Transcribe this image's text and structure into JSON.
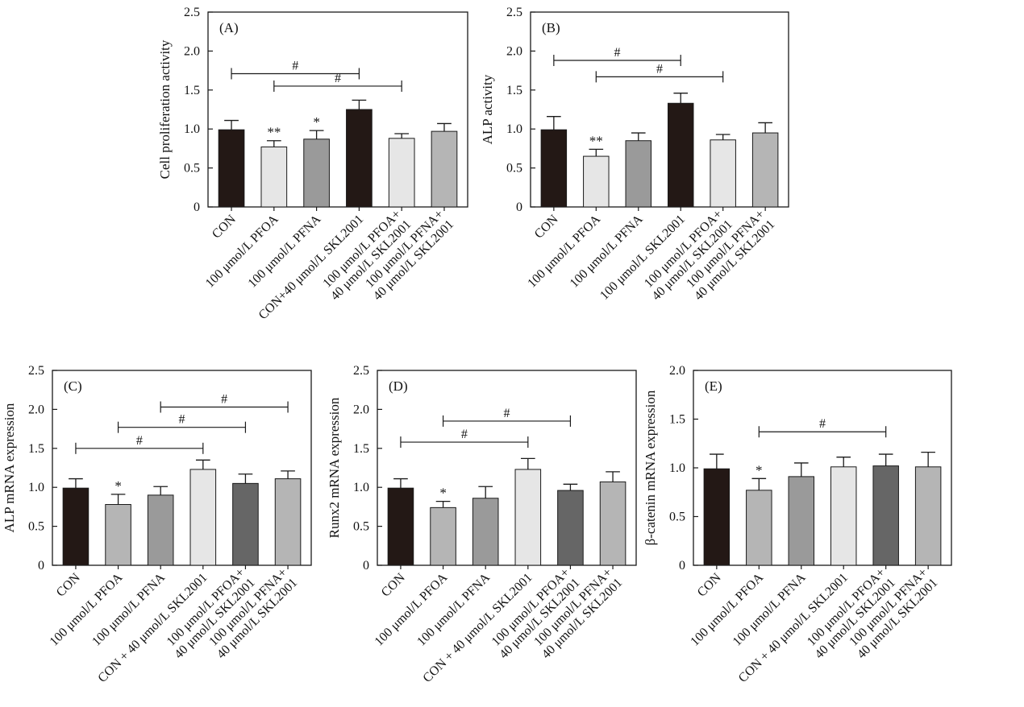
{
  "colors": {
    "black": "#231815",
    "light": "#e6e6e6",
    "mid": "#9a9a9a",
    "dark": "#666666",
    "silver": "#b5b5b5",
    "axis": "#1a1a1a"
  },
  "chart_data": [
    {
      "type": "bar",
      "panel": "(A)",
      "ylabel": "Cell proliferation activity",
      "ylim": [
        0,
        2.5
      ],
      "yticks": [
        "0",
        "0.5",
        "1.0",
        "1.5",
        "2.0",
        "2.5"
      ],
      "categories": [
        [
          "CON"
        ],
        [
          "100 μmol/L PFOA"
        ],
        [
          "100 μmol/L PFNA"
        ],
        [
          "CON+40 μmol/L SKL2001"
        ],
        [
          "100 μmol/L PFOA+",
          "40 μmol/L SKL2001"
        ],
        [
          "100 μmol/L PFNA+",
          "40 μmol/L SKL2001"
        ]
      ],
      "values": [
        0.99,
        0.77,
        0.87,
        1.25,
        0.88,
        0.97
      ],
      "errors": [
        0.12,
        0.08,
        0.11,
        0.12,
        0.06,
        0.1
      ],
      "bar_colors": [
        "black",
        "light",
        "mid",
        "black",
        "light",
        "silver"
      ],
      "significance": [
        "",
        "**",
        "*",
        "",
        "",
        ""
      ],
      "comparisons": [
        {
          "from": 0,
          "to": 3,
          "y": 1.71,
          "label": "#"
        },
        {
          "from": 1,
          "to": 4,
          "y": 1.55,
          "label": "#"
        }
      ]
    },
    {
      "type": "bar",
      "panel": "(B)",
      "ylabel": "ALP activity",
      "ylim": [
        0,
        2.5
      ],
      "yticks": [
        "0",
        "0.5",
        "1.0",
        "1.5",
        "2.0",
        "2.5"
      ],
      "categories": [
        [
          "CON"
        ],
        [
          "100 μmol/L PFOA"
        ],
        [
          "100 μmol/L PFNA"
        ],
        [
          "100 μmol/L SKL2001"
        ],
        [
          "100 μmol/L PFOA+",
          "40 μmol/L SKL2001"
        ],
        [
          "100 μmol/L PFNA+",
          "40 μmol/L SKL2001"
        ]
      ],
      "values": [
        0.99,
        0.65,
        0.85,
        1.33,
        0.86,
        0.95
      ],
      "errors": [
        0.17,
        0.09,
        0.1,
        0.13,
        0.07,
        0.13
      ],
      "bar_colors": [
        "black",
        "light",
        "mid",
        "black",
        "light",
        "silver"
      ],
      "significance": [
        "",
        "**",
        "",
        "",
        "",
        ""
      ],
      "comparisons": [
        {
          "from": 0,
          "to": 3,
          "y": 1.88,
          "label": "#"
        },
        {
          "from": 1,
          "to": 4,
          "y": 1.67,
          "label": "#"
        }
      ]
    },
    {
      "type": "bar",
      "panel": "(C)",
      "ylabel": "ALP mRNA expression",
      "ylim": [
        0,
        2.5
      ],
      "yticks": [
        "0",
        "0.5",
        "1.0",
        "1.5",
        "2.0",
        "2.5"
      ],
      "categories": [
        [
          "CON"
        ],
        [
          "100 μmol/L PFOA"
        ],
        [
          "100 μmol/L PFNA"
        ],
        [
          "CON + 40 μmol/L SKL2001"
        ],
        [
          "100 μmol/L PFOA+",
          "40 μmol/L SKL2001"
        ],
        [
          "100 μmol/L PFNA+",
          "40 μmol/L SKL2001"
        ]
      ],
      "values": [
        0.99,
        0.78,
        0.9,
        1.23,
        1.05,
        1.11
      ],
      "errors": [
        0.12,
        0.13,
        0.11,
        0.12,
        0.12,
        0.1
      ],
      "bar_colors": [
        "black",
        "silver",
        "mid",
        "light",
        "dark",
        "silver"
      ],
      "significance": [
        "",
        "*",
        "",
        "",
        "",
        ""
      ],
      "comparisons": [
        {
          "from": 0,
          "to": 3,
          "y": 1.5,
          "label": "#"
        },
        {
          "from": 1,
          "to": 4,
          "y": 1.77,
          "label": "#"
        },
        {
          "from": 2,
          "to": 5,
          "y": 2.03,
          "label": "#"
        }
      ]
    },
    {
      "type": "bar",
      "panel": "(D)",
      "ylabel": "Runx2 mRNA expression",
      "ylim": [
        0,
        2.5
      ],
      "yticks": [
        "0",
        "0.5",
        "1.0",
        "1.5",
        "2.0",
        "2.5"
      ],
      "categories": [
        [
          "CON"
        ],
        [
          "100 μmol/L PFOA"
        ],
        [
          "100 μmol/L PFNA"
        ],
        [
          "CON + 40 μmol/L SKL2001"
        ],
        [
          "100 μmol/L PFOA+",
          "40 μmol/L SKL2001"
        ],
        [
          "100 μmol/L PFNA+",
          "40 μmol/L SKL2001"
        ]
      ],
      "values": [
        0.99,
        0.74,
        0.86,
        1.23,
        0.96,
        1.07
      ],
      "errors": [
        0.12,
        0.08,
        0.15,
        0.14,
        0.08,
        0.13
      ],
      "bar_colors": [
        "black",
        "silver",
        "mid",
        "light",
        "dark",
        "silver"
      ],
      "significance": [
        "",
        "*",
        "",
        "",
        "",
        ""
      ],
      "comparisons": [
        {
          "from": 0,
          "to": 3,
          "y": 1.58,
          "label": "#"
        },
        {
          "from": 1,
          "to": 4,
          "y": 1.85,
          "label": "#"
        }
      ]
    },
    {
      "type": "bar",
      "panel": "(E)",
      "ylabel": "β-catenin mRNA expression",
      "ylim": [
        0,
        2.0
      ],
      "yticks": [
        "0",
        "0.5",
        "1.0",
        "1.5",
        "2.0"
      ],
      "categories": [
        [
          "CON"
        ],
        [
          "100 μmol/L PFOA"
        ],
        [
          "100 μmol/L PFNA"
        ],
        [
          "CON + 40 μmol/L SKL2001"
        ],
        [
          "100 μmol/L PFOA+",
          "40 μmol/L SKL2001"
        ],
        [
          "100 μmol/L PFNA+",
          "40 μmol/L SKL2001"
        ]
      ],
      "values": [
        0.99,
        0.77,
        0.91,
        1.01,
        1.02,
        1.01
      ],
      "errors": [
        0.15,
        0.12,
        0.14,
        0.1,
        0.12,
        0.15
      ],
      "bar_colors": [
        "black",
        "silver",
        "mid",
        "light",
        "dark",
        "silver"
      ],
      "significance": [
        "",
        "*",
        "",
        "",
        "",
        ""
      ],
      "comparisons": [
        {
          "from": 1,
          "to": 4,
          "y": 1.37,
          "label": "#"
        }
      ]
    }
  ]
}
